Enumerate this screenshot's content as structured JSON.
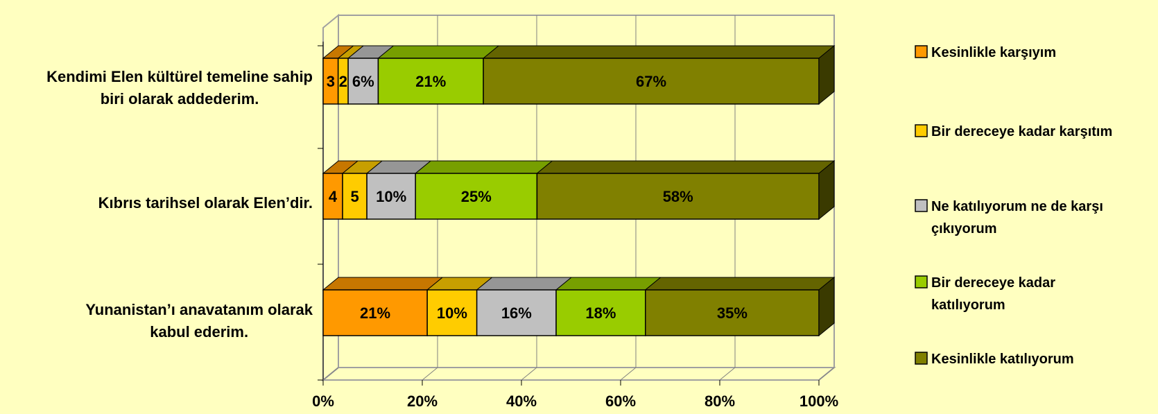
{
  "chart_data": {
    "type": "bar",
    "orientation": "horizontal",
    "stacked": "percent",
    "style": "3d",
    "categories": [
      [
        "Kendimi Elen kültürel temeline sahip",
        "biri olarak addederim."
      ],
      [
        "Kıbrıs tarihsel olarak Elen’dir."
      ],
      [
        "Yunanistan’ı anavatanım olarak",
        "kabul ederim."
      ]
    ],
    "series": [
      {
        "name": "Kesinlikle karşıyım",
        "values": [
          3,
          4,
          21
        ],
        "labels": [
          "3",
          "4",
          "21%"
        ],
        "color": "#ff9900"
      },
      {
        "name": "Bir dereceye kadar karşıtım",
        "values": [
          2,
          5,
          10
        ],
        "labels": [
          "2",
          "5",
          "10%"
        ],
        "color": "#ffcc00"
      },
      {
        "name": [
          "Ne katılıyorum ne de karşı",
          "çıkıyorum"
        ],
        "values": [
          6,
          10,
          16
        ],
        "labels": [
          "6%",
          "10%",
          "16%"
        ],
        "color": "#c0c0c0"
      },
      {
        "name": [
          "Bir dereceye kadar",
          "katılıyorum"
        ],
        "values": [
          21,
          25,
          18
        ],
        "labels": [
          "21%",
          "25%",
          "18%"
        ],
        "color": "#99cc00"
      },
      {
        "name": "Kesinlikle katılıyorum",
        "values": [
          67,
          58,
          35
        ],
        "labels": [
          "67%",
          "58%",
          "35%"
        ],
        "color": "#808000"
      }
    ],
    "x_ticks": [
      "0%",
      "20%",
      "40%",
      "60%",
      "80%",
      "100%"
    ],
    "xlim": [
      0,
      100
    ],
    "grid": true,
    "legend_position": "right",
    "title": "",
    "xlabel": "",
    "ylabel": ""
  }
}
